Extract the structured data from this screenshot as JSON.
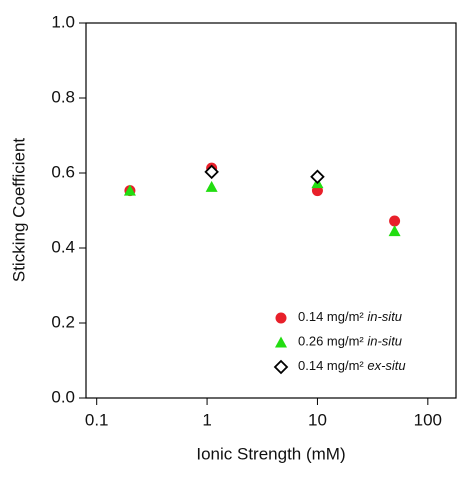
{
  "chart_data": {
    "type": "scatter",
    "x_label": "Ionic Strength (mM)",
    "y_label": "Sticking Coefficient",
    "x_log": true,
    "xlim": [
      0.08,
      180
    ],
    "xticks": [
      0.1,
      1,
      10,
      100
    ],
    "ylim": [
      0,
      1
    ],
    "yticks": [
      {
        "value": 0,
        "label": "0.0"
      },
      {
        "value": 0.2,
        "label": "0.2"
      },
      {
        "value": 0.4,
        "label": "0.4"
      },
      {
        "value": 0.6,
        "label": "0.6"
      },
      {
        "value": 0.8,
        "label": "0.8"
      },
      {
        "value": 1,
        "label": "1.0"
      }
    ],
    "legend": "lower right",
    "series": [
      {
        "name": "0.14 mg/m² in-situ",
        "color": "#e8202a",
        "marker": "circle",
        "x": [
          0.2,
          1.1,
          10,
          50
        ],
        "values": [
          0.553,
          0.613,
          0.553,
          0.472
        ]
      },
      {
        "name": "0.26 mg/m² in-situ",
        "color": "#22dd11",
        "marker": "triangle",
        "x": [
          0.2,
          1.1,
          10,
          50
        ],
        "values": [
          0.553,
          0.563,
          0.573,
          0.445
        ]
      },
      {
        "name": "0.14 mg/m² ex-situ",
        "color": "#000000",
        "marker": "diamond",
        "x": [
          1.1,
          10
        ],
        "values": [
          0.603,
          0.59
        ]
      }
    ]
  }
}
